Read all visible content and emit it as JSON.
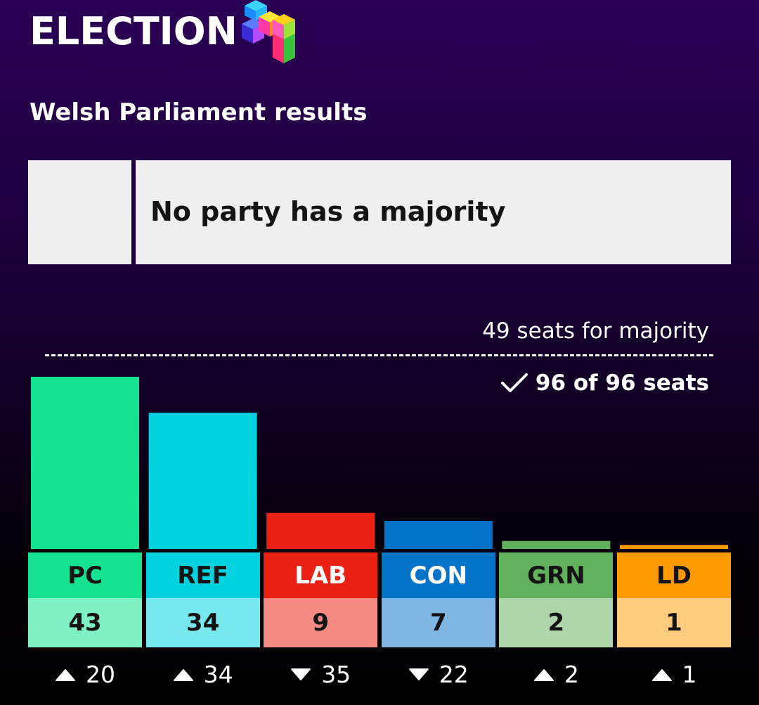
{
  "header": {
    "title": "ELECTION",
    "logo_icon": "election-cubes-logo"
  },
  "subtitle": "Welsh Parliament results",
  "status": {
    "text": "No party has a majority",
    "swatch_color": "#efefef"
  },
  "majority": {
    "label": "49 seats for majority",
    "seats": 49
  },
  "declared": {
    "text": "96 of 96 seats",
    "icon": "check-icon"
  },
  "chart_data": {
    "type": "bar",
    "categories": [
      "PC",
      "REF",
      "LAB",
      "CON",
      "GRN",
      "LD"
    ],
    "values": [
      43,
      34,
      9,
      7,
      2,
      1
    ],
    "total_seats": 96,
    "majority_threshold": 49,
    "colors": {
      "bar": [
        "#15e392",
        "#00d2df",
        "#ea2013",
        "#0474c8",
        "#62b25d",
        "#ff9a00"
      ],
      "code_bg": [
        "#15e392",
        "#00d2df",
        "#ea2013",
        "#0474c8",
        "#62b25d",
        "#ff9a00"
      ],
      "code_text": [
        "#141414",
        "#141414",
        "#ffffff",
        "#ffffff",
        "#141414",
        "#141414"
      ],
      "seats_bg": [
        "#7ff0c4",
        "#78e8ef",
        "#f48a82",
        "#7fb6e3",
        "#aed6aa",
        "#ffcb7d"
      ]
    },
    "changes": [
      {
        "direction": "up",
        "value": "20"
      },
      {
        "direction": "up",
        "value": "34"
      },
      {
        "direction": "down",
        "value": "35"
      },
      {
        "direction": "down",
        "value": "22"
      },
      {
        "direction": "up",
        "value": "2"
      },
      {
        "direction": "up",
        "value": "1"
      }
    ]
  }
}
